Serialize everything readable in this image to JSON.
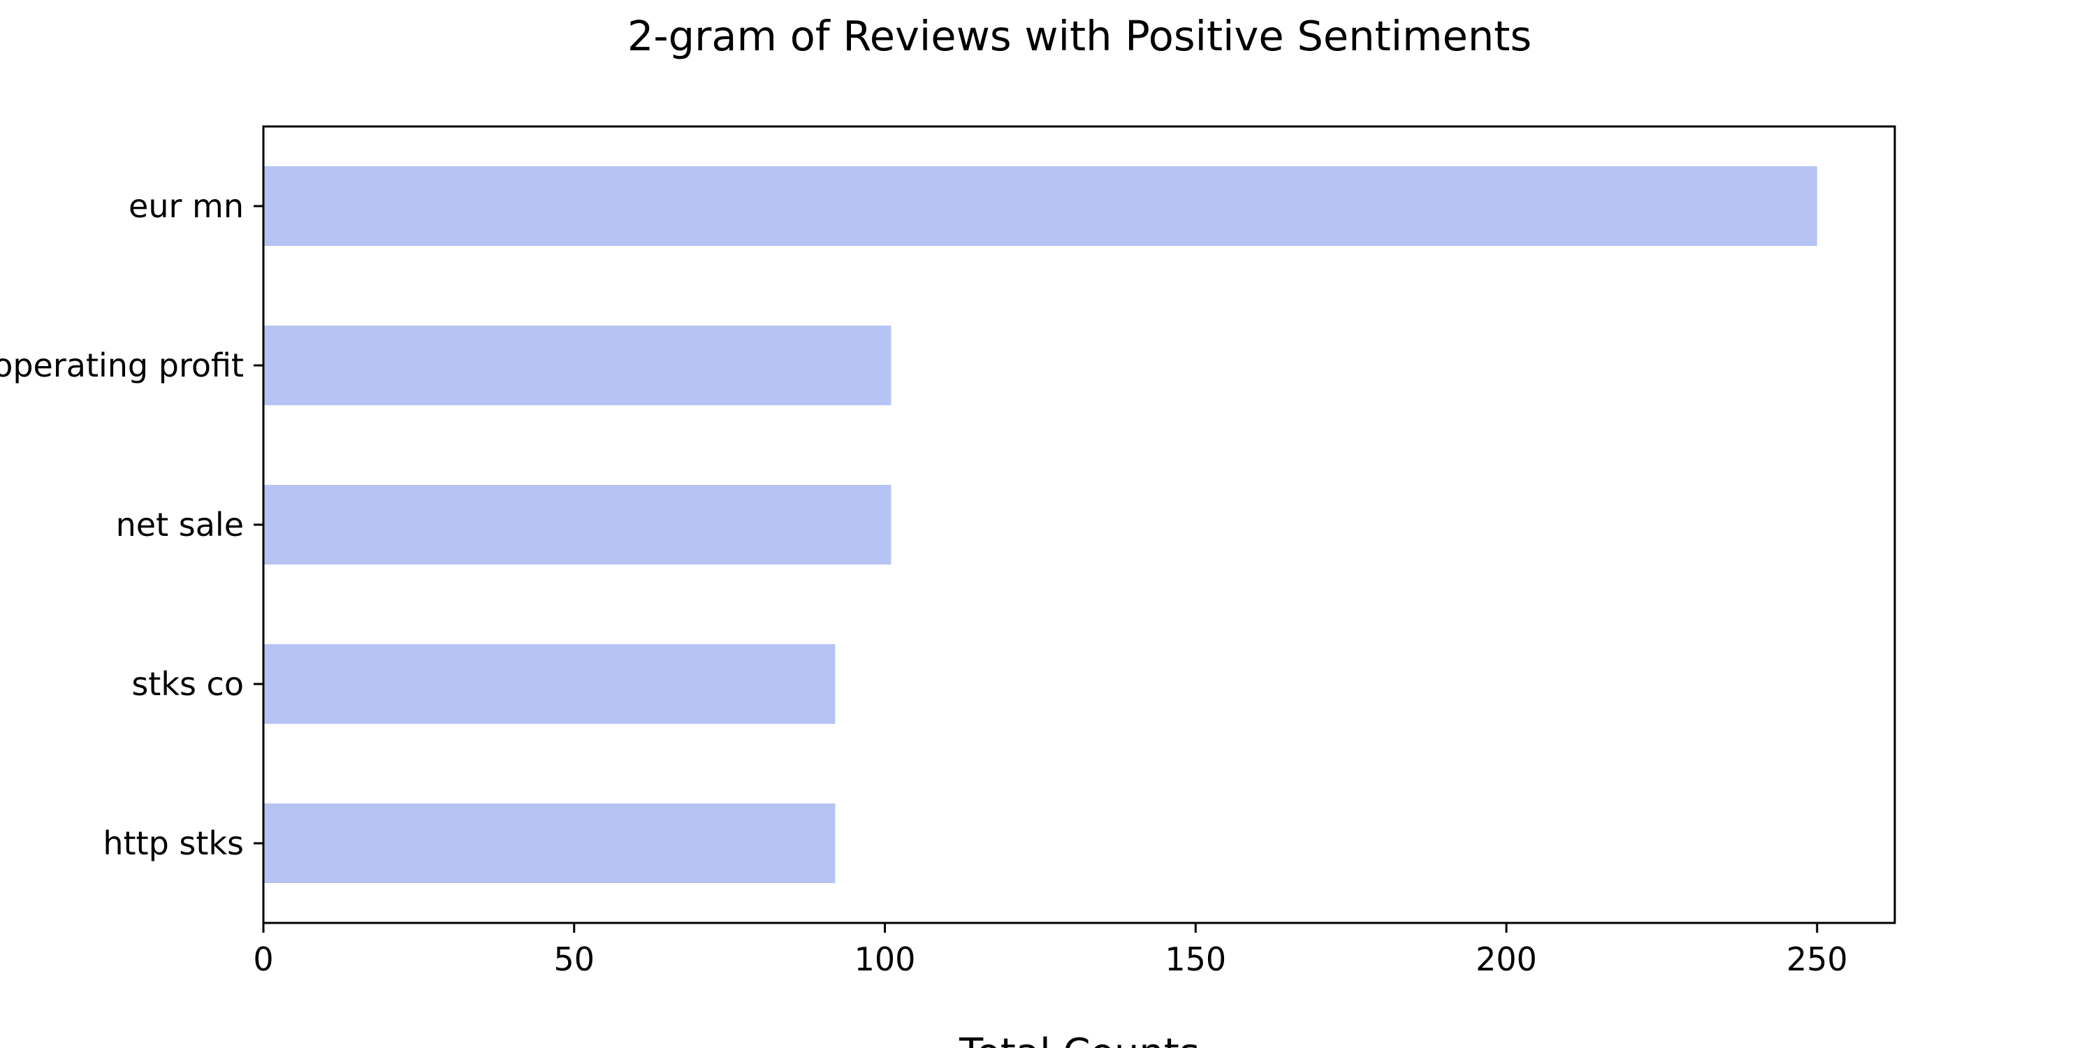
{
  "chart_data": {
    "type": "bar",
    "orientation": "horizontal",
    "title": "2-gram of Reviews with Positive Sentiments",
    "xlabel": "Total Counts",
    "ylabel": "",
    "categories": [
      "eur mn",
      "operating profit",
      "net sale",
      "stks co",
      "http stks"
    ],
    "values": [
      250,
      101,
      101,
      92,
      92
    ],
    "xlim": [
      0,
      262.5
    ],
    "xticks": [
      0,
      50,
      100,
      150,
      200,
      250
    ],
    "grid": false,
    "legend": "none",
    "bar_color": "#b7c3f3"
  }
}
